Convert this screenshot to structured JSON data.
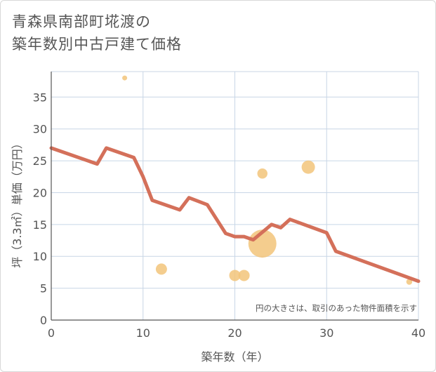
{
  "title": {
    "line1": "青森県南部町埖渡の",
    "line2": "築年数別中古戸建て価格"
  },
  "chart_data": {
    "type": "scatter+line",
    "title": "青森県南部町埖渡の築年数別中古戸建て価格",
    "xlabel": "築年数（年）",
    "ylabel": "坪（3.3㎡）単価（万円）",
    "xlim": [
      0,
      40
    ],
    "ylim": [
      0,
      39
    ],
    "xticks": [
      0,
      10,
      20,
      30,
      40
    ],
    "yticks": [
      0,
      5,
      10,
      15,
      20,
      25,
      30,
      35
    ],
    "grid": true,
    "note": "円の大きさは、取引のあった物件面積を示す",
    "trend_line": {
      "x": [
        0,
        5,
        6,
        9,
        10,
        11,
        14,
        15,
        17,
        19,
        20,
        21,
        22,
        24,
        25,
        26,
        30,
        31,
        40
      ],
      "y": [
        27,
        24.5,
        27,
        25.5,
        22.5,
        18.8,
        17.3,
        19.2,
        18.1,
        13.6,
        13.1,
        13.1,
        12.6,
        15.0,
        14.5,
        15.8,
        13.7,
        10.8,
        6.1
      ]
    },
    "bubbles": [
      {
        "x": 8,
        "y": 38,
        "size": 1
      },
      {
        "x": 12,
        "y": 8,
        "size": 4
      },
      {
        "x": 20,
        "y": 7,
        "size": 4
      },
      {
        "x": 21,
        "y": 7,
        "size": 4
      },
      {
        "x": 23,
        "y": 23,
        "size": 3.5
      },
      {
        "x": 23,
        "y": 12,
        "size": 12
      },
      {
        "x": 28,
        "y": 24,
        "size": 5
      },
      {
        "x": 39,
        "y": 6,
        "size": 1.5
      }
    ]
  },
  "colors": {
    "line": "#d4705a",
    "bubble": "#f2c47a",
    "grid": "#c8d6e6",
    "axis": "#555555"
  }
}
